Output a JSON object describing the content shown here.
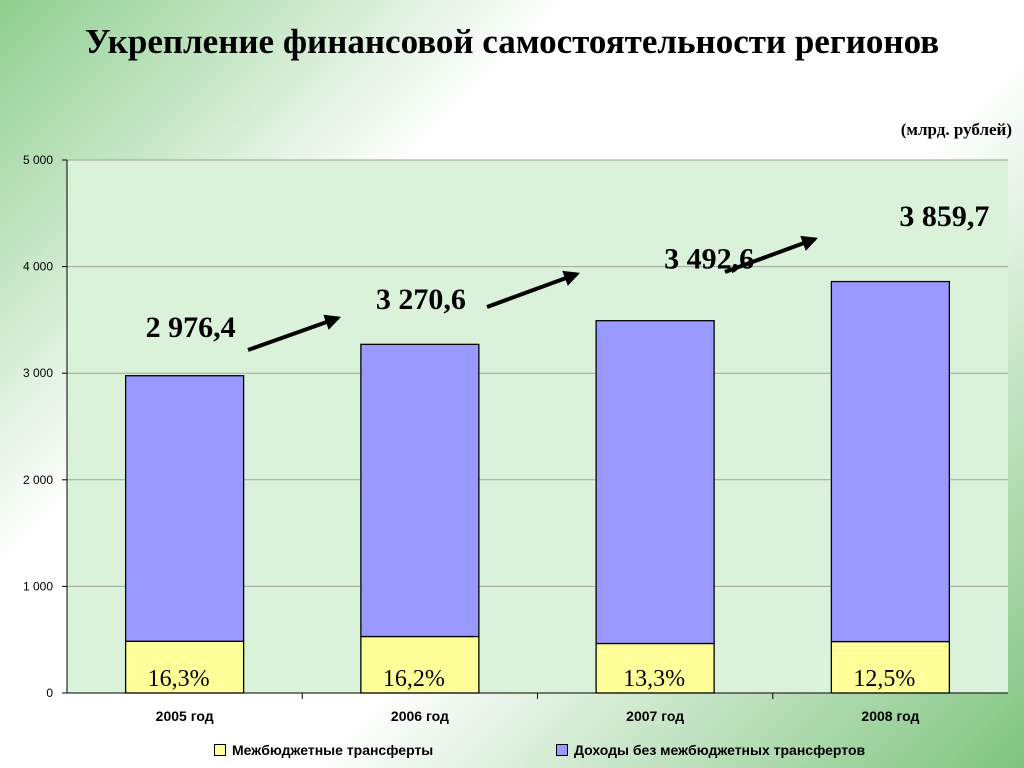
{
  "title": "Укрепление финансовой самостоятельности регионов",
  "unit_note": "(млрд. рублей)",
  "chart_data": {
    "type": "bar",
    "stacked": true,
    "categories": [
      "2005 год",
      "2006 год",
      "2007 год",
      "2008 год"
    ],
    "series": [
      {
        "name": "Межбюджетные трансферты",
        "values": [
          485.1,
          529.8,
          464.5,
          482.5
        ],
        "color": "#ffff99"
      },
      {
        "name": "Доходы без межбюджетных трансфертов",
        "values": [
          2491.3,
          2740.8,
          3028.1,
          3377.2
        ],
        "color": "#9999ff"
      }
    ],
    "totals": [
      "2 976,4",
      "3 270,6",
      "3 492,6",
      "3 859,7"
    ],
    "shares": [
      "16,3%",
      "16,2%",
      "13,3%",
      "12,5%"
    ],
    "ylim": [
      0,
      5000
    ],
    "y_ticks": [
      0,
      1000,
      2000,
      3000,
      4000,
      5000
    ],
    "y_tick_labels": [
      "0",
      "1 000",
      "2 000",
      "3 000",
      "4 000",
      "5 000"
    ],
    "grid": true,
    "legend_position": "bottom",
    "plot_background": "#d9f2d9"
  }
}
